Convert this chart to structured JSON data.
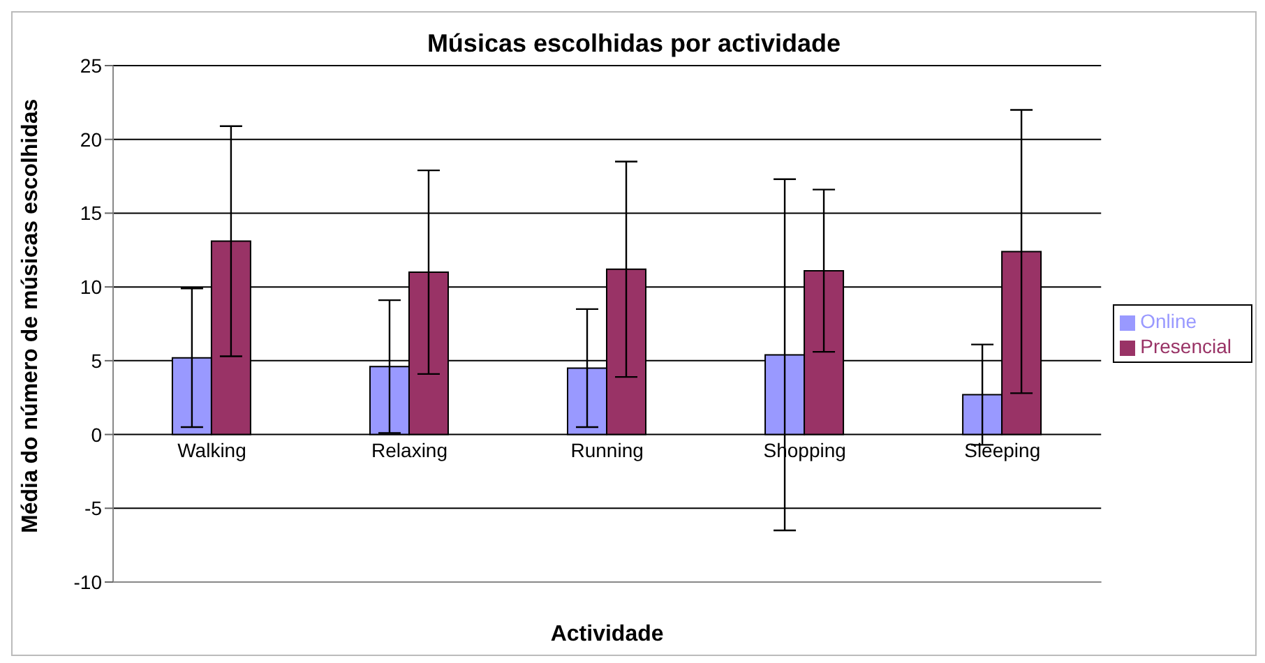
{
  "chart_data": {
    "type": "bar",
    "title": "Músicas escolhidas por actividade",
    "xlabel": "Actividade",
    "ylabel": "Média do número de músicas escolhidas",
    "categories": [
      "Walking",
      "Relaxing",
      "Running",
      "Shopping",
      "Sleeping"
    ],
    "series": [
      {
        "name": "Online",
        "color": "#9999ff",
        "values": [
          5.2,
          4.6,
          4.5,
          5.4,
          2.7
        ],
        "errors": [
          4.7,
          4.5,
          4.0,
          11.9,
          3.4
        ]
      },
      {
        "name": "Presencial",
        "color": "#993366",
        "values": [
          13.1,
          11.0,
          11.2,
          11.1,
          12.4
        ],
        "errors": [
          7.8,
          6.9,
          7.3,
          5.5,
          9.6
        ]
      }
    ],
    "ylim": [
      -10,
      25
    ],
    "yticks": [
      -10,
      -5,
      0,
      5,
      10,
      15,
      20,
      25
    ],
    "grid": "y",
    "legend": "right"
  }
}
